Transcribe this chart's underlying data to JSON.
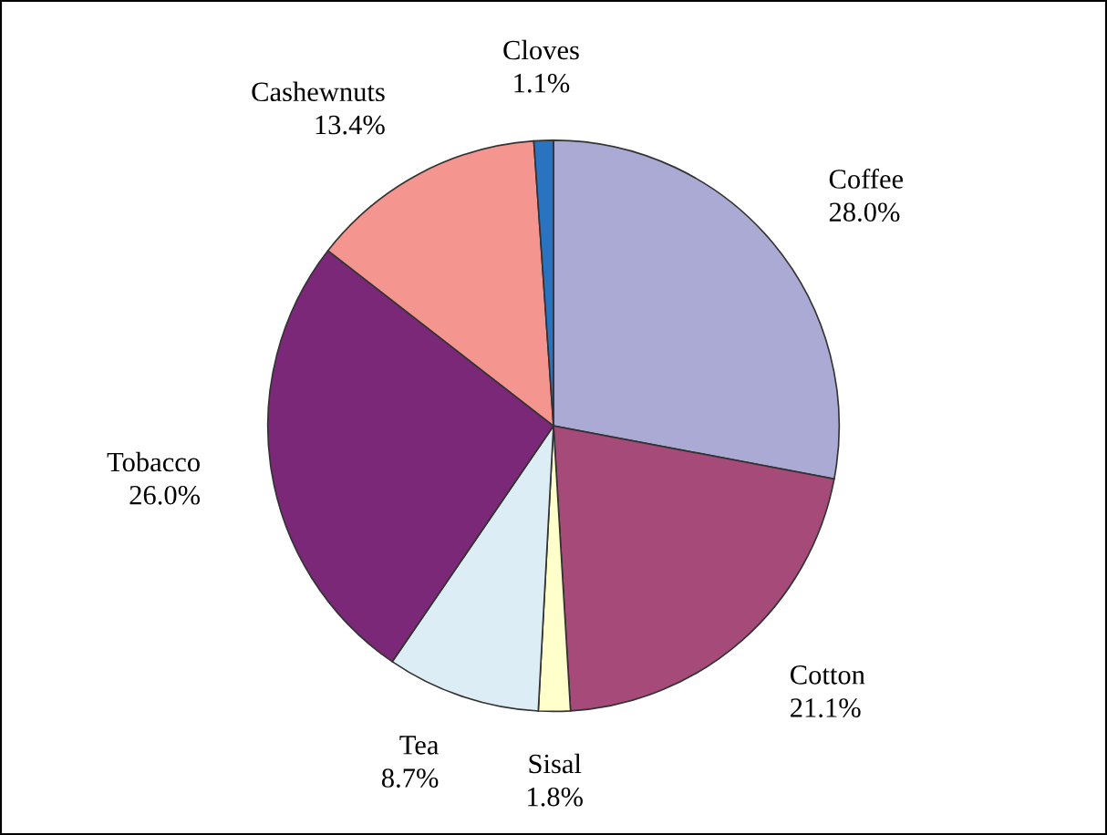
{
  "chart_data": {
    "type": "pie",
    "categories": [
      "Coffee",
      "Cotton",
      "Sisal",
      "Tea",
      "Tobacco",
      "Cashewnuts",
      "Cloves"
    ],
    "values": [
      28.0,
      21.1,
      1.8,
      8.7,
      26.0,
      13.4,
      1.1
    ],
    "colors": [
      "#aaaad5",
      "#a64a7a",
      "#ffffcc",
      "#dcedf5",
      "#7b2878",
      "#f4958f",
      "#2a73c0"
    ],
    "value_labels": [
      "28.0%",
      "21.1%",
      "1.8%",
      "8.7%",
      "26.0%",
      "13.4%",
      "1.1%"
    ]
  }
}
